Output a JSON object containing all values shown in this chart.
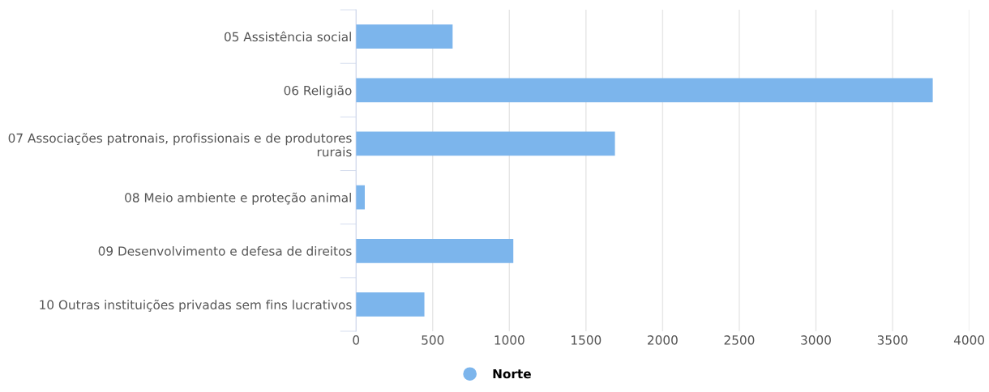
{
  "chart_data": {
    "type": "bar",
    "orientation": "horizontal",
    "categories": [
      "05 Assistência social",
      "06 Religião",
      "07 Associações patronais, profissionais e de produtores\nrurais",
      "08 Meio ambiente e proteção animal",
      "09 Desenvolvimento e defesa de direitos",
      "10 Outras instituições privadas sem fins lucrativos"
    ],
    "series": [
      {
        "name": "Norte",
        "color": "#7cb5ec",
        "values": [
          630,
          3762,
          1689,
          57,
          1026,
          446
        ]
      }
    ],
    "xlim": [
      0,
      4000
    ],
    "xticks": [
      0,
      500,
      1000,
      1500,
      2000,
      2500,
      3000,
      3500,
      4000
    ],
    "grid": "x",
    "legend": "bottom"
  }
}
